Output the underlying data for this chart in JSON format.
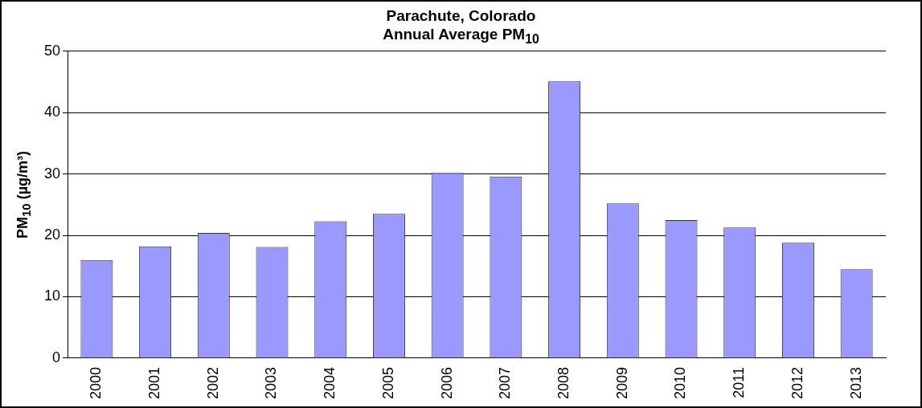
{
  "chart_data": {
    "type": "bar",
    "title": "Parachute, Colorado",
    "subtitle": "Annual Average PM$_{10}$",
    "ylabel": "PM$_{10}$ (µg/m³)",
    "categories": [
      "2000",
      "2001",
      "2002",
      "2003",
      "2004",
      "2005",
      "2006",
      "2007",
      "2008",
      "2009",
      "2010",
      "2011",
      "2012",
      "2013"
    ],
    "values": [
      16.0,
      18.2,
      20.4,
      18.1,
      22.3,
      23.5,
      30.2,
      29.6,
      45.1,
      25.2,
      22.5,
      21.3,
      18.8,
      14.5
    ],
    "color": "#9999ff",
    "ylim": [
      0,
      50
    ],
    "yticks": [
      0,
      10,
      20,
      30,
      40,
      50
    ],
    "grid": "y",
    "legend": false
  }
}
